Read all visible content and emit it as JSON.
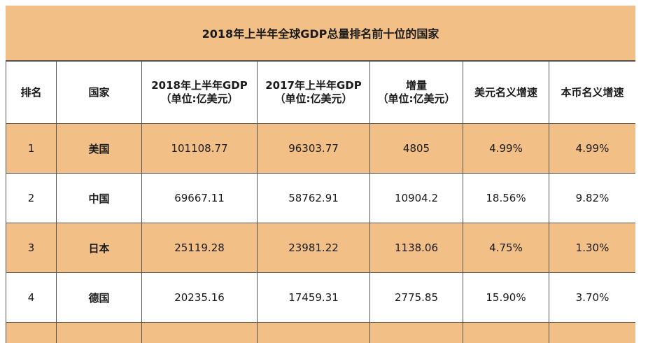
{
  "title": "2018年上半年全球GDP总量排名前十位的国家",
  "headers": [
    {
      "line1": "排名",
      "line2": ""
    },
    {
      "line1": "国家",
      "line2": ""
    },
    {
      "line1": "2018年上半年GDP",
      "line2": "（单位:亿美元）"
    },
    {
      "line1": "2017年上半年GDP",
      "line2": "（单位:亿美元）"
    },
    {
      "line1": "增量",
      "line2": "（单位:亿美元）"
    },
    {
      "line1": "美元名义增速",
      "line2": ""
    },
    {
      "line1": "本币名义增速",
      "line2": ""
    }
  ],
  "rows": [
    {
      "rank": "1",
      "country": "美国",
      "gdp2018": "101108.77",
      "gdp2017": "96303.77",
      "increase": "4805",
      "usd_growth": "4.99%",
      "local_growth": "4.99%"
    },
    {
      "rank": "2",
      "country": "中国",
      "gdp2018": "69667.11",
      "gdp2017": "58762.91",
      "increase": "10904.2",
      "usd_growth": "18.56%",
      "local_growth": "9.82%"
    },
    {
      "rank": "3",
      "country": "日本",
      "gdp2018": "25119.28",
      "gdp2017": "23981.22",
      "increase": "1138.06",
      "usd_growth": "4.75%",
      "local_growth": "1.30%"
    },
    {
      "rank": "4",
      "country": "德国",
      "gdp2018": "20235.16",
      "gdp2017": "17459.31",
      "increase": "2775.85",
      "usd_growth": "15.90%",
      "local_growth": "3.70%"
    }
  ],
  "colors": {
    "highlight": "#f2bf86",
    "border": "#555555"
  }
}
